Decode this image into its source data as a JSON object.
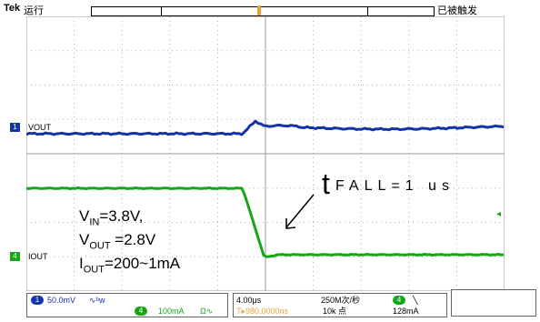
{
  "header": {
    "brand": "Tek",
    "run_state": "运行",
    "trigger_state": "已被触发"
  },
  "trigger_marker": "T",
  "channels": [
    {
      "id": "1",
      "label": "VOUT",
      "color": "#1533a8"
    },
    {
      "id": "4",
      "label": "IOUT",
      "color": "#17a617"
    }
  ],
  "annotation": {
    "t_main": "t",
    "t_sub": "FALL=1 us"
  },
  "parameters": {
    "vin_prefix": "V",
    "vin_sub": "IN",
    "vin_value": "=3.8V,",
    "vout_prefix": "V",
    "vout_sub": "OUT",
    "vout_value": " =2.8V",
    "iout_prefix": "I",
    "iout_sub": "OUT",
    "iout_value": "=200~1mA"
  },
  "status_bar": {
    "ch1_id": "1",
    "ch1_scale": "50.0mV",
    "ch1_coupling": "∿ᵇw",
    "ch4_id": "4",
    "ch4_scale": "100mA",
    "ch4_coupling": "Ω∿",
    "timebase": "4.00μs",
    "trigger_position": "▸980.0000ns",
    "sample_rate": "250M次/秒",
    "record_length": "10k 点",
    "trig_source_id": "4",
    "trig_slope": "╲",
    "trig_level": "128mA"
  },
  "colors": {
    "ch1": "#1533a8",
    "ch4": "#17a617",
    "trigger": "#e8a33a",
    "grid": "#b0b0b0"
  }
}
